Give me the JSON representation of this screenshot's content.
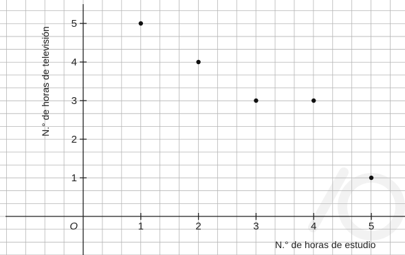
{
  "chart_data": {
    "type": "scatter",
    "xlabel": "N.° de horas de estudio",
    "ylabel": "N.° de horas de televisión",
    "origin_label": "O",
    "x_ticks": [
      "1",
      "2",
      "3",
      "4",
      "5"
    ],
    "y_ticks": [
      "1",
      "2",
      "3",
      "4",
      "5"
    ],
    "xlim": [
      -1.4,
      5.6
    ],
    "ylim": [
      -1.0,
      5.5
    ],
    "grid": true,
    "grid_minor_step": 0.333,
    "points": [
      {
        "x": 1,
        "y": 5
      },
      {
        "x": 2,
        "y": 4
      },
      {
        "x": 3,
        "y": 3
      },
      {
        "x": 4,
        "y": 3
      },
      {
        "x": 5,
        "y": 1
      }
    ],
    "colors": {
      "grid": "#b5b5b5",
      "axis": "#222222",
      "point": "#111111"
    }
  }
}
